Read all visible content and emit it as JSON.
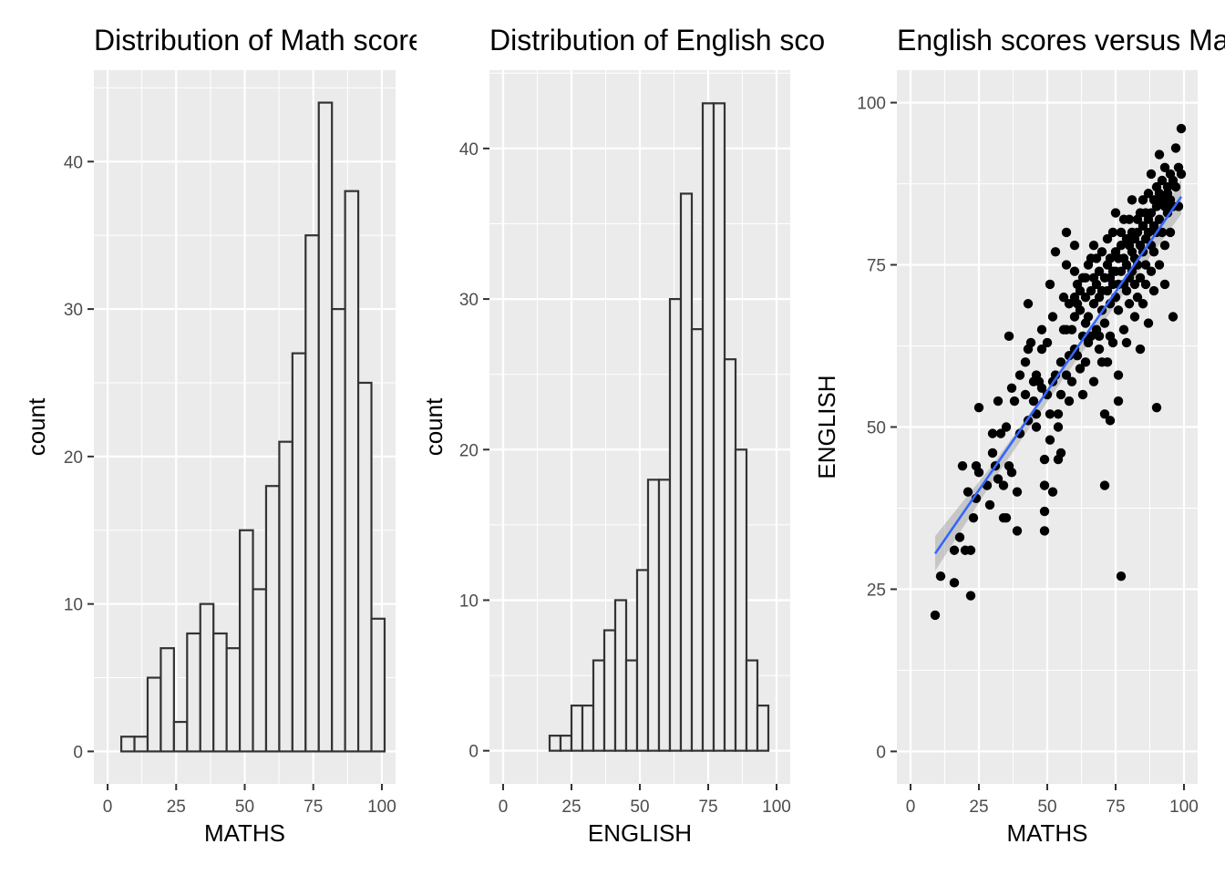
{
  "chart_data": [
    {
      "type": "bar",
      "title": "Distribution of Math scores",
      "xlabel": "MATHS",
      "ylabel": "count",
      "xlim": [
        -5,
        105
      ],
      "ylim": [
        -2.2,
        46.2
      ],
      "xticks": [
        0,
        25,
        50,
        75,
        100
      ],
      "yticks": [
        0,
        10,
        20,
        30,
        40
      ],
      "bin_width": 4.8,
      "bins": [
        {
          "x0": 5.0,
          "count": 1
        },
        {
          "x0": 9.8,
          "count": 1
        },
        {
          "x0": 14.6,
          "count": 5
        },
        {
          "x0": 19.4,
          "count": 7
        },
        {
          "x0": 24.2,
          "count": 2
        },
        {
          "x0": 29.0,
          "count": 8
        },
        {
          "x0": 33.8,
          "count": 10
        },
        {
          "x0": 38.6,
          "count": 8
        },
        {
          "x0": 43.4,
          "count": 7
        },
        {
          "x0": 48.2,
          "count": 15
        },
        {
          "x0": 53.0,
          "count": 11
        },
        {
          "x0": 57.8,
          "count": 18
        },
        {
          "x0": 62.6,
          "count": 21
        },
        {
          "x0": 67.4,
          "count": 27
        },
        {
          "x0": 72.2,
          "count": 35
        },
        {
          "x0": 77.0,
          "count": 44
        },
        {
          "x0": 81.8,
          "count": 30
        },
        {
          "x0": 86.6,
          "count": 38
        },
        {
          "x0": 91.4,
          "count": 25
        },
        {
          "x0": 96.2,
          "count": 9
        }
      ]
    },
    {
      "type": "bar",
      "title": "Distribution of English scores",
      "xlabel": "ENGLISH",
      "ylabel": "count",
      "xlim": [
        -5,
        105
      ],
      "ylim": [
        -2.2,
        45.2
      ],
      "xticks": [
        0,
        25,
        50,
        75,
        100
      ],
      "yticks": [
        0,
        10,
        20,
        30,
        40
      ],
      "bin_width": 4.0,
      "bins": [
        {
          "x0": 17,
          "count": 1
        },
        {
          "x0": 21,
          "count": 1
        },
        {
          "x0": 25,
          "count": 3
        },
        {
          "x0": 29,
          "count": 3
        },
        {
          "x0": 33,
          "count": 6
        },
        {
          "x0": 37,
          "count": 8
        },
        {
          "x0": 41,
          "count": 10
        },
        {
          "x0": 45,
          "count": 6
        },
        {
          "x0": 49,
          "count": 12
        },
        {
          "x0": 53,
          "count": 18
        },
        {
          "x0": 57,
          "count": 18
        },
        {
          "x0": 61,
          "count": 30
        },
        {
          "x0": 65,
          "count": 37
        },
        {
          "x0": 69,
          "count": 28
        },
        {
          "x0": 73,
          "count": 43
        },
        {
          "x0": 77,
          "count": 43
        },
        {
          "x0": 81,
          "count": 26
        },
        {
          "x0": 85,
          "count": 20
        },
        {
          "x0": 89,
          "count": 6
        },
        {
          "x0": 93,
          "count": 3
        }
      ]
    },
    {
      "type": "scatter",
      "title": "English scores versus Math scores",
      "xlabel": "MATHS",
      "ylabel": "ENGLISH",
      "xlim": [
        -5,
        105
      ],
      "ylim": [
        -5,
        105
      ],
      "xticks": [
        0,
        25,
        50,
        75,
        100
      ],
      "yticks": [
        0,
        25,
        50,
        75,
        100
      ],
      "points": [
        [
          9,
          21
        ],
        [
          11,
          27
        ],
        [
          16,
          26
        ],
        [
          16,
          31
        ],
        [
          18,
          33
        ],
        [
          19,
          44
        ],
        [
          20,
          31
        ],
        [
          21,
          40
        ],
        [
          22,
          31
        ],
        [
          22,
          24
        ],
        [
          23,
          36
        ],
        [
          24,
          44
        ],
        [
          24,
          39
        ],
        [
          25,
          43
        ],
        [
          25,
          53
        ],
        [
          28,
          41
        ],
        [
          29,
          38
        ],
        [
          30,
          49
        ],
        [
          30,
          46
        ],
        [
          31,
          44
        ],
        [
          32,
          42
        ],
        [
          32,
          54
        ],
        [
          33,
          49
        ],
        [
          34,
          41
        ],
        [
          34,
          36
        ],
        [
          35,
          50
        ],
        [
          35,
          36
        ],
        [
          36,
          44
        ],
        [
          36,
          64
        ],
        [
          37,
          43
        ],
        [
          37,
          56
        ],
        [
          38,
          54
        ],
        [
          39,
          34
        ],
        [
          39,
          40
        ],
        [
          40,
          49
        ],
        [
          40,
          58
        ],
        [
          42,
          55
        ],
        [
          42,
          60
        ],
        [
          43,
          62
        ],
        [
          43,
          51
        ],
        [
          43,
          69
        ],
        [
          44,
          63
        ],
        [
          45,
          54
        ],
        [
          45,
          57
        ],
        [
          46,
          52
        ],
        [
          46,
          50
        ],
        [
          46,
          58
        ],
        [
          47,
          57
        ],
        [
          48,
          56
        ],
        [
          48,
          62
        ],
        [
          48,
          65
        ],
        [
          49,
          37
        ],
        [
          49,
          34
        ],
        [
          49,
          45
        ],
        [
          49,
          41
        ],
        [
          50,
          55
        ],
        [
          50,
          63
        ],
        [
          51,
          52
        ],
        [
          51,
          48
        ],
        [
          51,
          72
        ],
        [
          52,
          67
        ],
        [
          52,
          57
        ],
        [
          52,
          40
        ],
        [
          53,
          58
        ],
        [
          53,
          77
        ],
        [
          54,
          52
        ],
        [
          54,
          50
        ],
        [
          54,
          45
        ],
        [
          55,
          55
        ],
        [
          55,
          46
        ],
        [
          55,
          60
        ],
        [
          56,
          65
        ],
        [
          56,
          70
        ],
        [
          57,
          65
        ],
        [
          57,
          80
        ],
        [
          57,
          58
        ],
        [
          57,
          75
        ],
        [
          58,
          54
        ],
        [
          58,
          61
        ],
        [
          58,
          69
        ],
        [
          59,
          65
        ],
        [
          59,
          57
        ],
        [
          60,
          70
        ],
        [
          60,
          74
        ],
        [
          60,
          62
        ],
        [
          60,
          67
        ],
        [
          60,
          78
        ],
        [
          61,
          61
        ],
        [
          61,
          69
        ],
        [
          61,
          72
        ],
        [
          62,
          59
        ],
        [
          62,
          68
        ],
        [
          62,
          71
        ],
        [
          63,
          64
        ],
        [
          63,
          73
        ],
        [
          63,
          55
        ],
        [
          64,
          66
        ],
        [
          64,
          70
        ],
        [
          64,
          73
        ],
        [
          64,
          60
        ],
        [
          65,
          67
        ],
        [
          65,
          75
        ],
        [
          65,
          63
        ],
        [
          66,
          71
        ],
        [
          66,
          76
        ],
        [
          66,
          64
        ],
        [
          67,
          69
        ],
        [
          67,
          73
        ],
        [
          67,
          78
        ],
        [
          67,
          57
        ],
        [
          68,
          72
        ],
        [
          68,
          65
        ],
        [
          68,
          76
        ],
        [
          69,
          70
        ],
        [
          69,
          74
        ],
        [
          69,
          64
        ],
        [
          69,
          62
        ],
        [
          70,
          71
        ],
        [
          70,
          77
        ],
        [
          70,
          68
        ],
        [
          70,
          60
        ],
        [
          71,
          73
        ],
        [
          71,
          66
        ],
        [
          71,
          52
        ],
        [
          71,
          41
        ],
        [
          72,
          75
        ],
        [
          72,
          71
        ],
        [
          72,
          79
        ],
        [
          72,
          60
        ],
        [
          73,
          73
        ],
        [
          73,
          76
        ],
        [
          73,
          69
        ],
        [
          73,
          64
        ],
        [
          73,
          51
        ],
        [
          74,
          72
        ],
        [
          74,
          80
        ],
        [
          74,
          74
        ],
        [
          74,
          63
        ],
        [
          75,
          74
        ],
        [
          75,
          70
        ],
        [
          75,
          77
        ],
        [
          75,
          83
        ],
        [
          76,
          76
        ],
        [
          76,
          72
        ],
        [
          76,
          68
        ],
        [
          76,
          58
        ],
        [
          76,
          54
        ],
        [
          77,
          78
        ],
        [
          77,
          74
        ],
        [
          77,
          80
        ],
        [
          77,
          27
        ],
        [
          78,
          76
        ],
        [
          78,
          72
        ],
        [
          78,
          82
        ],
        [
          78,
          65
        ],
        [
          79,
          75
        ],
        [
          79,
          79
        ],
        [
          79,
          71
        ],
        [
          79,
          63
        ],
        [
          80,
          78
        ],
        [
          80,
          73
        ],
        [
          80,
          82
        ],
        [
          80,
          69
        ],
        [
          81,
          77
        ],
        [
          81,
          80
        ],
        [
          81,
          74
        ],
        [
          81,
          85
        ],
        [
          82,
          79
        ],
        [
          82,
          76
        ],
        [
          82,
          72
        ],
        [
          82,
          67
        ],
        [
          83,
          80
        ],
        [
          83,
          82
        ],
        [
          83,
          75
        ],
        [
          83,
          70
        ],
        [
          84,
          78
        ],
        [
          84,
          83
        ],
        [
          84,
          73
        ],
        [
          84,
          62
        ],
        [
          85,
          81
        ],
        [
          85,
          77
        ],
        [
          85,
          85
        ],
        [
          85,
          69
        ],
        [
          86,
          79
        ],
        [
          86,
          83
        ],
        [
          86,
          75
        ],
        [
          86,
          72
        ],
        [
          87,
          82
        ],
        [
          87,
          80
        ],
        [
          87,
          86
        ],
        [
          87,
          66
        ],
        [
          88,
          83
        ],
        [
          88,
          78
        ],
        [
          88,
          89
        ],
        [
          88,
          74
        ],
        [
          89,
          81
        ],
        [
          89,
          85
        ],
        [
          89,
          77
        ],
        [
          89,
          71
        ],
        [
          90,
          84
        ],
        [
          90,
          87
        ],
        [
          90,
          80
        ],
        [
          90,
          53
        ],
        [
          91,
          86
        ],
        [
          91,
          82
        ],
        [
          91,
          92
        ],
        [
          91,
          75
        ],
        [
          92,
          85
        ],
        [
          92,
          88
        ],
        [
          92,
          80
        ],
        [
          93,
          84
        ],
        [
          93,
          90
        ],
        [
          93,
          78
        ],
        [
          93,
          72
        ],
        [
          94,
          87
        ],
        [
          94,
          83
        ],
        [
          94,
          86
        ],
        [
          95,
          89
        ],
        [
          95,
          85
        ],
        [
          95,
          80
        ],
        [
          96,
          88
        ],
        [
          96,
          84
        ],
        [
          96,
          67
        ],
        [
          97,
          87
        ],
        [
          97,
          93
        ],
        [
          98,
          90
        ],
        [
          98,
          84
        ],
        [
          99,
          89
        ],
        [
          99,
          96
        ]
      ],
      "fit_line": {
        "color": "#3366ff",
        "from": [
          9,
          30.5
        ],
        "to": [
          99,
          85.5
        ]
      },
      "ci_band": [
        [
          9,
          27.8,
          33.2
        ],
        [
          30,
          41.6,
          44.2
        ],
        [
          55,
          56.9,
          58.7
        ],
        [
          80,
          71.8,
          73.7
        ],
        [
          99,
          82.8,
          88.2
        ]
      ]
    }
  ]
}
